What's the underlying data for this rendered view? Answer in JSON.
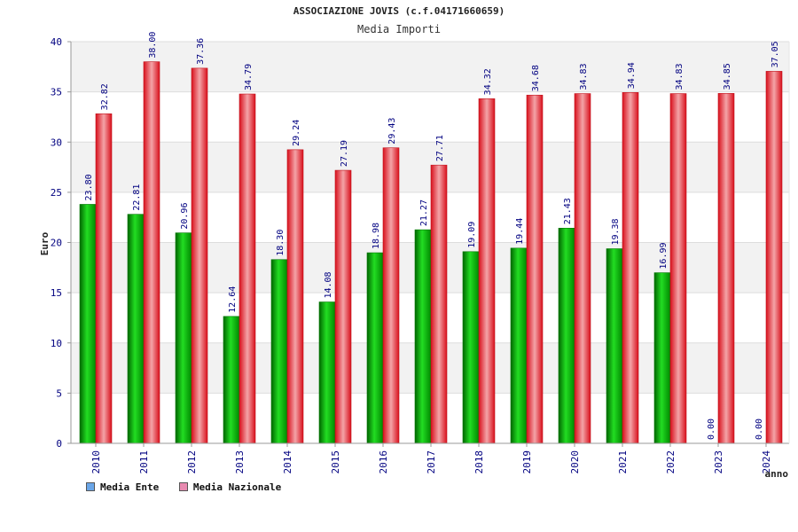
{
  "chart_data": {
    "type": "bar",
    "title": "ASSOCIAZIONE JOVIS (c.f.04171660659)",
    "subtitle": "Media Importi",
    "ylabel": "Euro",
    "xlabel": "anno",
    "ylim": [
      0,
      40
    ],
    "yticks": [
      0,
      5,
      10,
      15,
      20,
      25,
      30,
      35,
      40
    ],
    "categories": [
      "2010",
      "2011",
      "2012",
      "2013",
      "2014",
      "2015",
      "2016",
      "2017",
      "2018",
      "2019",
      "2020",
      "2021",
      "2022",
      "2023",
      "2024"
    ],
    "series": [
      {
        "name": "Media Ente",
        "color": "#00b000",
        "values": [
          23.8,
          22.81,
          20.96,
          12.64,
          18.3,
          14.08,
          18.98,
          21.27,
          19.09,
          19.44,
          21.43,
          19.38,
          16.99,
          0.0,
          0.0
        ],
        "labels": [
          "23.80",
          "22.81",
          "20.96",
          "12.64",
          "18.30",
          "14.08",
          "18.98",
          "21.27",
          "19.09",
          "19.44",
          "21.43",
          "19.38",
          "16.99",
          "0.00",
          "0.00"
        ]
      },
      {
        "name": "Media Nazionale",
        "color": "#e8202a",
        "values": [
          32.82,
          38.0,
          37.36,
          34.79,
          29.24,
          27.19,
          29.43,
          27.71,
          34.32,
          34.68,
          34.83,
          34.94,
          34.83,
          34.85,
          37.05
        ],
        "labels": [
          "32.82",
          "38.00",
          "37.36",
          "34.79",
          "29.24",
          "27.19",
          "29.43",
          "27.71",
          "34.32",
          "34.68",
          "34.83",
          "34.94",
          "34.83",
          "34.85",
          "37.05"
        ]
      }
    ],
    "legend": {
      "placement": "bottom-left",
      "items": [
        {
          "label": "Media Ente",
          "color": "#6aa6e8"
        },
        {
          "label": "Media Nazionale",
          "color": "#e88ab0"
        }
      ]
    },
    "grid": true
  }
}
